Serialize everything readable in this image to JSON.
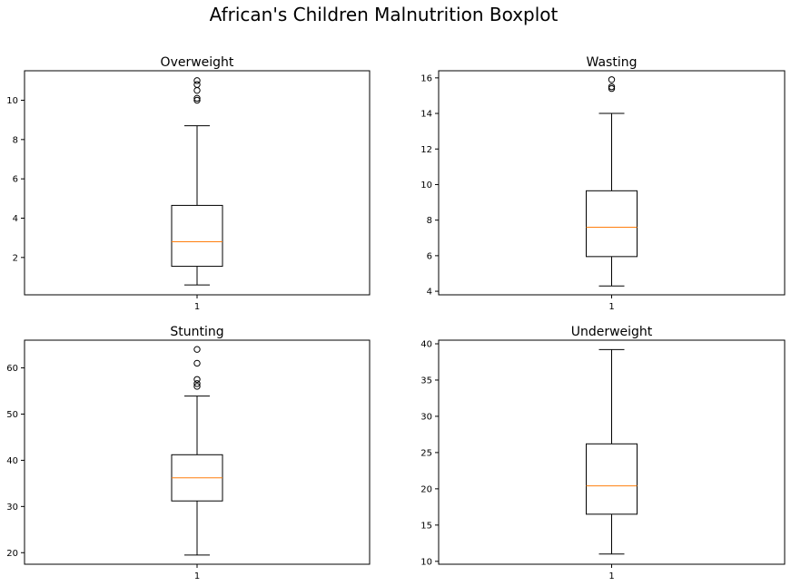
{
  "figure": {
    "title": "African's Children Malnutrition Boxplot"
  },
  "colors": {
    "median": "#ff7f0e",
    "line": "#000000",
    "background": "#ffffff"
  },
  "chart_data": [
    {
      "type": "box",
      "title": "Overweight",
      "categories": [
        "1"
      ],
      "ylim": [
        0.1,
        11.5
      ],
      "yticks": [
        2,
        4,
        6,
        8,
        10
      ],
      "box": {
        "whisker_low": 0.6,
        "q1": 1.55,
        "median": 2.8,
        "q3": 4.65,
        "whisker_high": 8.7
      },
      "outliers": [
        10.0,
        10.1,
        10.5,
        10.8,
        11.0
      ]
    },
    {
      "type": "box",
      "title": "Wasting",
      "categories": [
        "1"
      ],
      "ylim": [
        3.8,
        16.4
      ],
      "yticks": [
        4,
        6,
        8,
        10,
        12,
        14,
        16
      ],
      "box": {
        "whisker_low": 4.3,
        "q1": 5.95,
        "median": 7.6,
        "q3": 9.65,
        "whisker_high": 14.0
      },
      "outliers": [
        15.4,
        15.5,
        15.9
      ]
    },
    {
      "type": "box",
      "title": "Stunting",
      "categories": [
        "1"
      ],
      "ylim": [
        17.5,
        66
      ],
      "yticks": [
        20,
        30,
        40,
        50,
        60
      ],
      "box": {
        "whisker_low": 19.5,
        "q1": 31.2,
        "median": 36.2,
        "q3": 41.2,
        "whisker_high": 53.9
      },
      "outliers": [
        56.0,
        56.6,
        57.5,
        61.0,
        64.0
      ]
    },
    {
      "type": "box",
      "title": "Underweight",
      "categories": [
        "1"
      ],
      "ylim": [
        9.6,
        40.5
      ],
      "yticks": [
        10,
        15,
        20,
        25,
        30,
        35,
        40
      ],
      "box": {
        "whisker_low": 11.0,
        "q1": 16.5,
        "median": 20.4,
        "q3": 26.2,
        "whisker_high": 39.2
      },
      "outliers": []
    }
  ]
}
